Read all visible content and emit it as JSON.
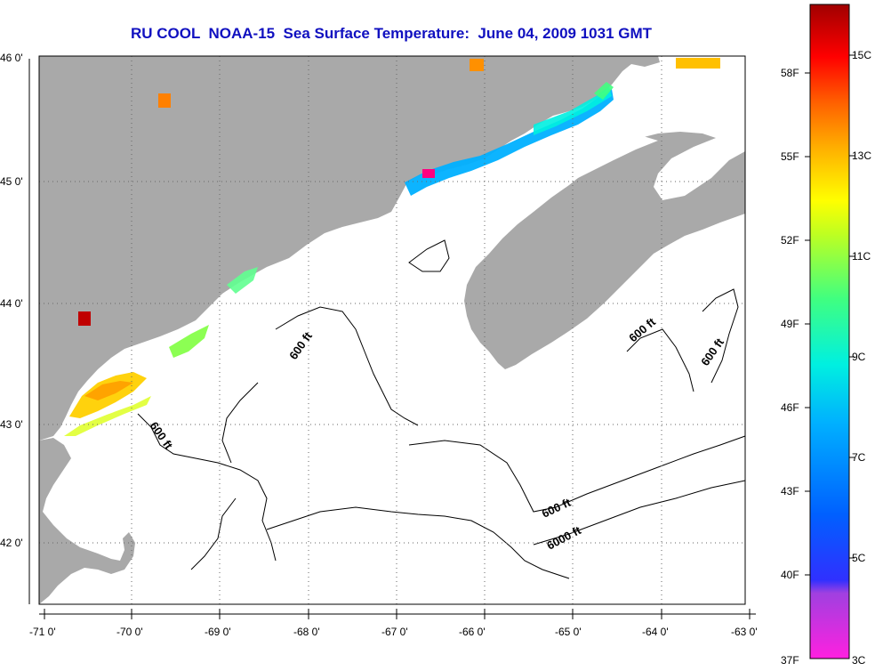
{
  "title": "RU COOL  NOAA-15  Sea Surface Temperature:  June 04, 2009 1031 GMT",
  "map": {
    "lon_labels": [
      "-71 0'",
      "-70 0'",
      "-69 0'",
      "-68 0'",
      "-67 0'",
      "-66 0'",
      "-65 0'",
      "-64 0'",
      "-63 0'"
    ],
    "lat_labels": [
      "46 0'",
      "45 0'",
      "44 0'",
      "43 0'",
      "42 0'"
    ],
    "land_color": "#a9a9a9",
    "water_color": "#ffffff",
    "contour_labels": [
      {
        "text": "600 ft"
      },
      {
        "text": "600 ft"
      },
      {
        "text": "600 ft"
      },
      {
        "text": "600 ft"
      },
      {
        "text": "600 ft"
      },
      {
        "text": "6000 ft"
      }
    ]
  },
  "colorbar": {
    "f_labels": [
      "58F",
      "55F",
      "52F",
      "49F",
      "46F",
      "43F",
      "40F",
      "37F"
    ],
    "c_labels": [
      "15C",
      "13C",
      "11C",
      "9C",
      "7C",
      "5C",
      "3C"
    ],
    "colors": [
      "#ff20e0",
      "#a040e0",
      "#3030ff",
      "#0060ff",
      "#00b0ff",
      "#00f0e0",
      "#40ff80",
      "#c0ff20",
      "#ffff00",
      "#ffb000",
      "#ff6000",
      "#ff0000",
      "#a00000"
    ]
  }
}
